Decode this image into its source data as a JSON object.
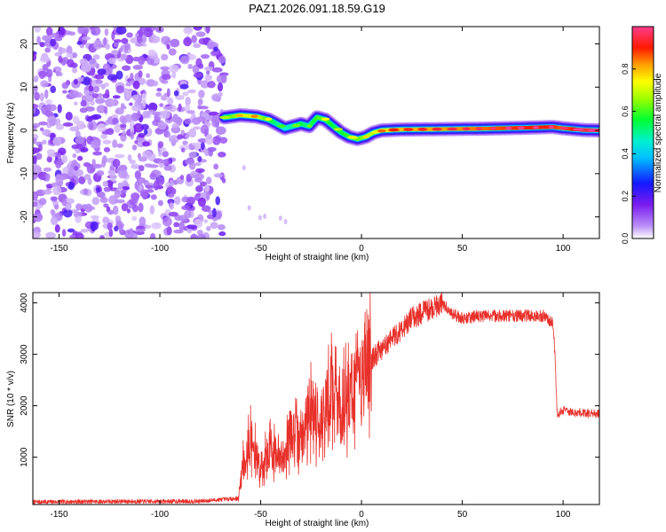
{
  "title": "PAZ1.2026.091.18.59.G19",
  "chart_data": [
    {
      "type": "heatmap",
      "name": "spectrogram",
      "xlabel": "Height of straight line (km)",
      "ylabel": "Frequency (Hz)",
      "xlim": [
        -163,
        118
      ],
      "ylim": [
        -25,
        24
      ],
      "xticks": [
        -150,
        -100,
        -50,
        0,
        50,
        100
      ],
      "yticks": [
        20,
        10,
        0,
        -10,
        -20
      ],
      "xtick_labels": [
        "-150",
        "-100",
        "-50",
        "0",
        "50",
        "100"
      ],
      "ytick_labels": [
        "20",
        "10",
        "0",
        "-10",
        "-20"
      ],
      "noise_region_x": [
        -163,
        -68
      ],
      "ridge": {
        "x": [
          -68,
          -60,
          -52,
          -46,
          -42,
          -38,
          -34,
          -30,
          -26,
          -22,
          -18,
          -14,
          -10,
          -6,
          -2,
          2,
          6,
          10,
          20,
          40,
          60,
          80,
          95,
          100,
          110,
          118
        ],
        "y": [
          3.0,
          3.5,
          3.2,
          2.5,
          1.5,
          0.5,
          1.0,
          1.5,
          1.0,
          3.0,
          2.5,
          1.0,
          -0.5,
          -1.5,
          -2.0,
          -1.5,
          -0.5,
          0.0,
          0.2,
          0.3,
          0.4,
          0.6,
          0.8,
          0.5,
          0.1,
          0.0
        ],
        "amp": [
          0.55,
          0.7,
          0.72,
          0.6,
          0.5,
          0.45,
          0.5,
          0.55,
          0.5,
          0.6,
          0.62,
          0.55,
          0.55,
          0.6,
          0.62,
          0.65,
          0.7,
          0.75,
          0.8,
          0.82,
          0.85,
          0.9,
          0.9,
          0.85,
          0.95,
          0.95
        ]
      },
      "colorbar": {
        "label": "Normalized spectral amplitude",
        "range": [
          0,
          1
        ],
        "ticks": [
          "0.0",
          "0.2",
          "0.4",
          "0.6",
          "0.8"
        ]
      }
    },
    {
      "type": "line",
      "name": "snr",
      "xlabel": "Height of straight line (km)",
      "ylabel": "SNR (10 * v/v)",
      "xlim": [
        -163,
        118
      ],
      "ylim": [
        80,
        4200
      ],
      "xticks": [
        -150,
        -100,
        -50,
        0,
        50,
        100
      ],
      "yticks": [
        1000,
        2000,
        3000,
        4000
      ],
      "xtick_labels": [
        "-150",
        "-100",
        "-50",
        "0",
        "50",
        "100"
      ],
      "ytick_labels": [
        "1000",
        "2000",
        "3000",
        "4000"
      ],
      "series": [
        {
          "name": "SNR",
          "color": "#e8302a",
          "x": [
            -163,
            -140,
            -120,
            -100,
            -80,
            -61,
            -59,
            -55,
            -50,
            -45,
            -40,
            -35,
            -30,
            -25,
            -20,
            -15,
            -10,
            -5,
            0,
            5,
            10,
            15,
            20,
            25,
            30,
            35,
            40,
            45,
            50,
            60,
            70,
            80,
            90,
            95,
            96,
            97,
            100,
            110,
            118
          ],
          "y": [
            130,
            135,
            140,
            140,
            145,
            200,
            900,
            1300,
            800,
            1200,
            900,
            1500,
            1300,
            2000,
            1700,
            2300,
            2000,
            2300,
            2600,
            2900,
            3100,
            3300,
            3500,
            3700,
            3800,
            3900,
            4000,
            3800,
            3700,
            3750,
            3750,
            3750,
            3750,
            3600,
            3000,
            1850,
            1900,
            1850,
            1850
          ]
        }
      ]
    }
  ]
}
